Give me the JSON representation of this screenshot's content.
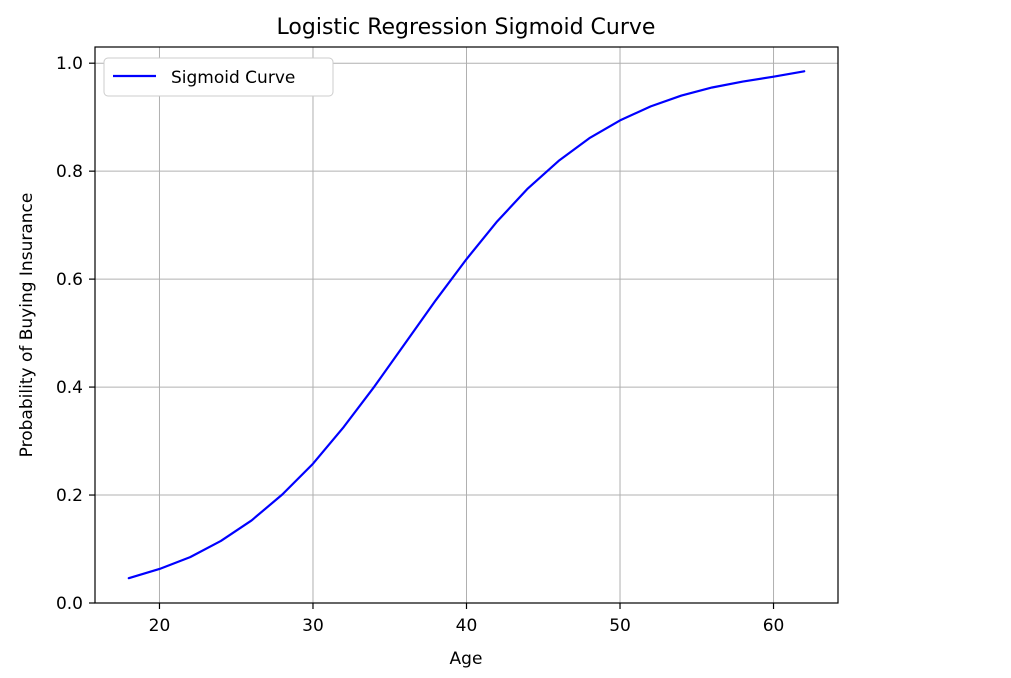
{
  "chart_data": {
    "type": "line",
    "title": "Logistic Regression Sigmoid Curve",
    "xlabel": "Age",
    "ylabel": "Probability of Buying Insurance",
    "xlim": [
      15.8,
      64.2
    ],
    "ylim": [
      0,
      1.03
    ],
    "xticks": [
      20,
      30,
      40,
      50,
      60
    ],
    "yticks": [
      0.0,
      0.2,
      0.4,
      0.6,
      0.8,
      1.0
    ],
    "xtick_labels": [
      "20",
      "30",
      "40",
      "50",
      "60"
    ],
    "ytick_labels": [
      "0.0",
      "0.2",
      "0.4",
      "0.6",
      "0.8",
      "1.0"
    ],
    "grid": true,
    "legend_position": "top-left",
    "series": [
      {
        "name": "Sigmoid Curve",
        "color": "#0000ff",
        "x": [
          18,
          20,
          22,
          24,
          26,
          28,
          30,
          32,
          34,
          36,
          38,
          40,
          42,
          44,
          46,
          48,
          50,
          52,
          54,
          56,
          58,
          60,
          62
        ],
        "y": [
          0.046,
          0.063,
          0.085,
          0.115,
          0.153,
          0.201,
          0.258,
          0.326,
          0.401,
          0.481,
          0.561,
          0.637,
          0.707,
          0.768,
          0.819,
          0.861,
          0.894,
          0.92,
          0.94,
          0.955,
          0.966,
          0.975,
          0.985
        ]
      }
    ]
  }
}
